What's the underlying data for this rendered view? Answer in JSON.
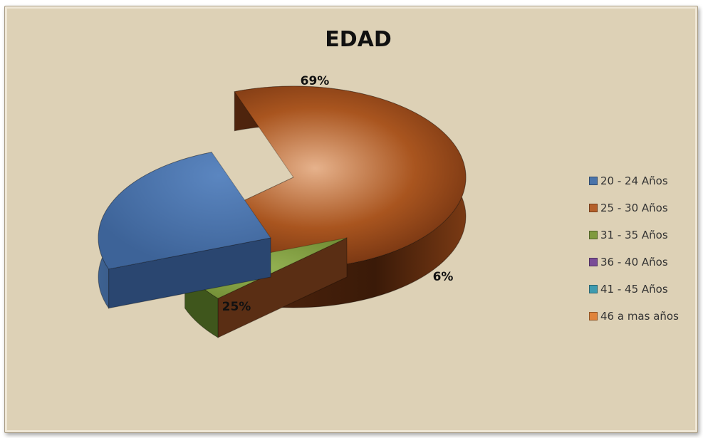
{
  "chart_data": {
    "type": "pie",
    "title": "EDAD",
    "categories": [
      "20 - 24 Años",
      "25 - 30 Años",
      "31 - 35 Años",
      "36 - 40 Años",
      "41 - 45 Años",
      "46 a mas años"
    ],
    "values": [
      25,
      69,
      6,
      0,
      0,
      0
    ],
    "data_labels": [
      "25%",
      "69%",
      "6%",
      "",
      "",
      ""
    ],
    "colors": [
      "#4a74aa",
      "#b5602a",
      "#7f9a3e",
      "#7a4c97",
      "#3e9bb0",
      "#e0833a"
    ],
    "legend_position": "right",
    "style": "3d-exploded"
  }
}
